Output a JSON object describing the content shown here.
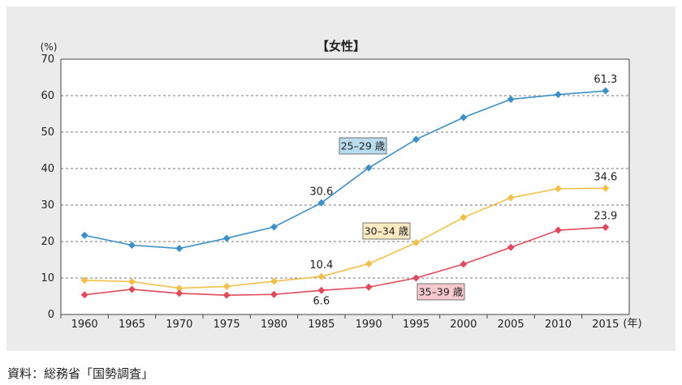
{
  "source_note": "資料：総務省「国勢調査」",
  "chart_data": {
    "type": "line",
    "title": "【女性】",
    "y_unit_label": "(%)",
    "x_unit_label": "(年)",
    "ylim": [
      0,
      70
    ],
    "yticks": [
      0,
      10,
      20,
      30,
      40,
      50,
      60,
      70
    ],
    "grid": "horizontal-dashed",
    "categories": [
      "1960",
      "1965",
      "1970",
      "1975",
      "1980",
      "1985",
      "1990",
      "1995",
      "2000",
      "2005",
      "2010",
      "2015"
    ],
    "series": [
      {
        "name": "25–29 歳",
        "color": "#3d8fc7",
        "label_bg": "#b9dcee",
        "values": [
          21.7,
          19.0,
          18.1,
          20.9,
          24.0,
          30.6,
          40.2,
          48.0,
          54.0,
          59.0,
          60.3,
          61.3
        ]
      },
      {
        "name": "30–34 歳",
        "color": "#f2c04a",
        "label_bg": "#fcebc2",
        "values": [
          9.4,
          9.0,
          7.2,
          7.7,
          9.1,
          10.4,
          13.9,
          19.7,
          26.6,
          32.0,
          34.5,
          34.6
        ]
      },
      {
        "name": "35–39 歳",
        "color": "#e04a5c",
        "label_bg": "#f6c9cd",
        "values": [
          5.4,
          6.9,
          5.8,
          5.3,
          5.5,
          6.6,
          7.5,
          10.0,
          13.8,
          18.4,
          23.1,
          23.9
        ]
      }
    ],
    "data_labels": [
      {
        "series": 0,
        "index": 5,
        "text": "30.6"
      },
      {
        "series": 0,
        "index": 11,
        "text": "61.3"
      },
      {
        "series": 1,
        "index": 5,
        "text": "10.4"
      },
      {
        "series": 1,
        "index": 11,
        "text": "34.6"
      },
      {
        "series": 2,
        "index": 5,
        "text": "6.6"
      },
      {
        "series": 2,
        "index": 11,
        "text": "23.9"
      }
    ]
  }
}
